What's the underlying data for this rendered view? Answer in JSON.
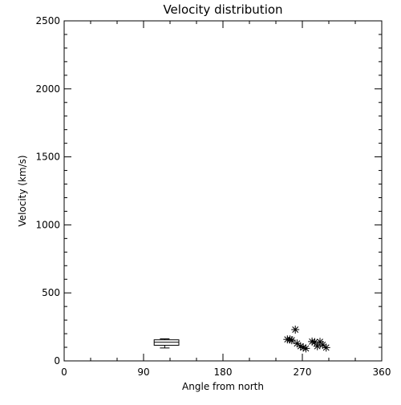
{
  "chart_data": {
    "type": "scatter",
    "title": "Velocity distribution",
    "xlabel": "Angle from north",
    "ylabel": "Velocity (km/s)",
    "xlim": [
      0,
      360
    ],
    "ylim": [
      0,
      2500
    ],
    "x_ticks": [
      0,
      90,
      180,
      270,
      360
    ],
    "y_ticks": [
      0,
      500,
      1000,
      1500,
      2000,
      2500
    ],
    "grid": false,
    "legend": "none",
    "colors": {
      "foreground": "#000000",
      "background": "#ffffff"
    },
    "box": {
      "x_center": 114,
      "x_range": [
        102,
        130
      ],
      "whisker_low": 95,
      "q1": 115,
      "median": 137,
      "q3": 155,
      "whisker_high": 162
    },
    "series": [
      {
        "marker": "asterisk",
        "points": [
          {
            "x": 253,
            "y": 158
          },
          {
            "x": 256,
            "y": 158
          },
          {
            "x": 258,
            "y": 152
          },
          {
            "x": 262,
            "y": 230
          },
          {
            "x": 264,
            "y": 128
          },
          {
            "x": 268,
            "y": 108
          },
          {
            "x": 271,
            "y": 98
          },
          {
            "x": 274,
            "y": 92
          },
          {
            "x": 281,
            "y": 142
          },
          {
            "x": 284,
            "y": 138
          },
          {
            "x": 287,
            "y": 108
          },
          {
            "x": 290,
            "y": 140
          },
          {
            "x": 293,
            "y": 118
          },
          {
            "x": 297,
            "y": 98
          }
        ]
      }
    ]
  }
}
